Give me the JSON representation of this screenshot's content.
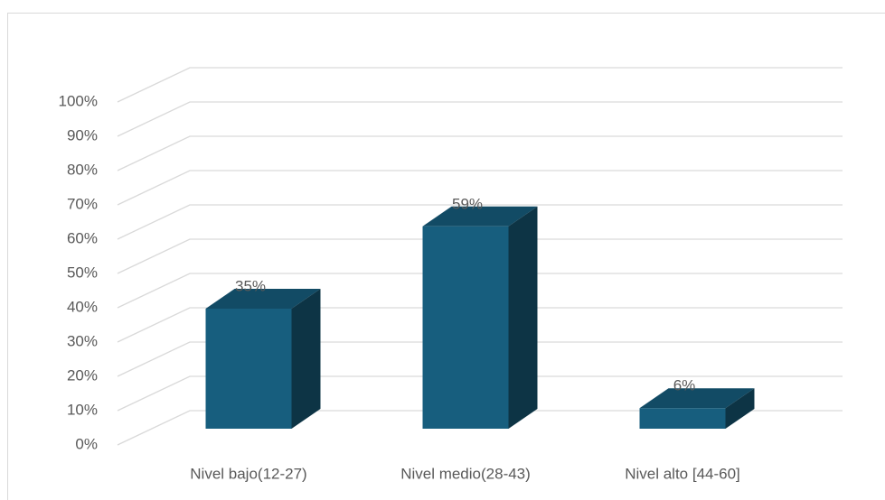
{
  "chart_data": {
    "type": "bar3d",
    "categories": [
      "Nivel bajo(12-27)",
      "Nivel medio(28-43)",
      "Nivel alto  [44-60]"
    ],
    "values": [
      35,
      59,
      6
    ],
    "value_labels": [
      "35%",
      "59%",
      "6%"
    ],
    "color": "#175e7e",
    "ylim": [
      0,
      100
    ],
    "yticks": [
      {
        "value": 0,
        "label": "0%"
      },
      {
        "value": 10,
        "label": "10%"
      },
      {
        "value": 20,
        "label": "20%"
      },
      {
        "value": 30,
        "label": "30%"
      },
      {
        "value": 40,
        "label": "40%"
      },
      {
        "value": 50,
        "label": "50%"
      },
      {
        "value": 60,
        "label": "60%"
      },
      {
        "value": 70,
        "label": "70%"
      },
      {
        "value": 80,
        "label": "80%"
      },
      {
        "value": 90,
        "label": "90%"
      },
      {
        "value": 100,
        "label": "100%"
      }
    ],
    "grid": true
  }
}
